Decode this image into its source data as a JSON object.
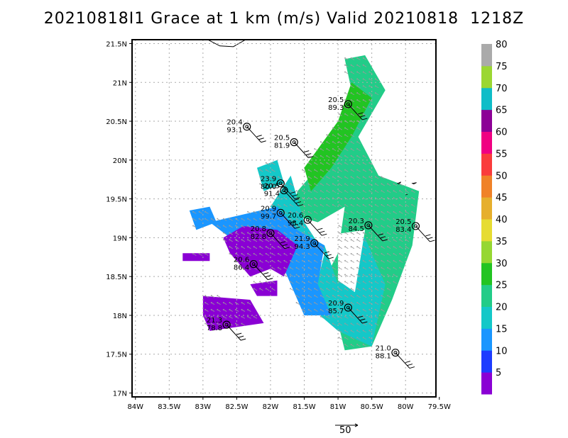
{
  "title": "20210818I1 Grace at 1 km (m/s) Valid 20210818  1218Z",
  "axes": {
    "lat_labels": [
      "21.5N",
      "21N",
      "20.5N",
      "20N",
      "19.5N",
      "19N",
      "18.5N",
      "18N",
      "17.5N",
      "17N"
    ],
    "lat_values": [
      21.5,
      21,
      20.5,
      20,
      19.5,
      19,
      18.5,
      18,
      17.5,
      17
    ],
    "lon_labels": [
      "84W",
      "83.5W",
      "83W",
      "82.5W",
      "82W",
      "81.5W",
      "81W",
      "80.5W",
      "80W",
      "79.5W"
    ],
    "lon_values": [
      -84,
      -83.5,
      -83,
      -82.5,
      -82,
      -81.5,
      -81,
      -80.5,
      -80,
      -79.5
    ],
    "lat_range": [
      16.95,
      21.55
    ],
    "lon_range": [
      -84.05,
      -79.55
    ]
  },
  "colorbar": {
    "labels": [
      "5",
      "10",
      "15",
      "20",
      "25",
      "30",
      "35",
      "40",
      "45",
      "50",
      "55",
      "60",
      "65",
      "70",
      "75",
      "80"
    ],
    "colors": [
      "#8a00d4",
      "#1e3cff",
      "#1a96ff",
      "#14c8c8",
      "#22cc88",
      "#22c422",
      "#96d732",
      "#e6dc32",
      "#e6af2d",
      "#f08228",
      "#fa3c3c",
      "#f00082",
      "#8c0096",
      "#0fbdc8",
      "#9bd732",
      "#aaaaaa"
    ]
  },
  "stations": [
    {
      "id": "s1",
      "lon": -80.85,
      "lat": 20.72,
      "speed": "89.3",
      "p": "20.5"
    },
    {
      "id": "s2",
      "lon": -82.35,
      "lat": 20.43,
      "speed": "93.1",
      "p": "20.4"
    },
    {
      "id": "s3",
      "lon": -81.65,
      "lat": 20.23,
      "speed": "81.9",
      "p": "20.5"
    },
    {
      "id": "s4",
      "lon": -81.85,
      "lat": 19.7,
      "speed": "80.0",
      "p": "23.9"
    },
    {
      "id": "s5",
      "lon": -81.8,
      "lat": 19.61,
      "speed": "91.4",
      "p": "20.5"
    },
    {
      "id": "s6",
      "lon": -81.85,
      "lat": 19.32,
      "speed": "99.7",
      "p": "20.9"
    },
    {
      "id": "s7",
      "lon": -81.45,
      "lat": 19.23,
      "speed": "98.4",
      "p": "20.6"
    },
    {
      "id": "s8",
      "lon": -80.55,
      "lat": 19.16,
      "speed": "84.5",
      "p": "20.3"
    },
    {
      "id": "s9",
      "lon": -79.85,
      "lat": 19.15,
      "speed": "83.4",
      "p": "20.5"
    },
    {
      "id": "s10",
      "lon": -82.0,
      "lat": 19.06,
      "speed": "82.8",
      "p": "20.8"
    },
    {
      "id": "s11",
      "lon": -81.35,
      "lat": 18.93,
      "speed": "94.3",
      "p": "21.9"
    },
    {
      "id": "s12",
      "lon": -82.25,
      "lat": 18.66,
      "speed": "86.4",
      "p": "20.6"
    },
    {
      "id": "s13",
      "lon": -80.85,
      "lat": 18.1,
      "speed": "85.7",
      "p": "20.9"
    },
    {
      "id": "s14",
      "lon": -82.65,
      "lat": 17.88,
      "speed": "78.8",
      "p": "21.3"
    },
    {
      "id": "s15",
      "lon": -80.15,
      "lat": 17.52,
      "speed": "88.1",
      "p": "21.0"
    }
  ],
  "reference_vector": {
    "label": "50"
  }
}
